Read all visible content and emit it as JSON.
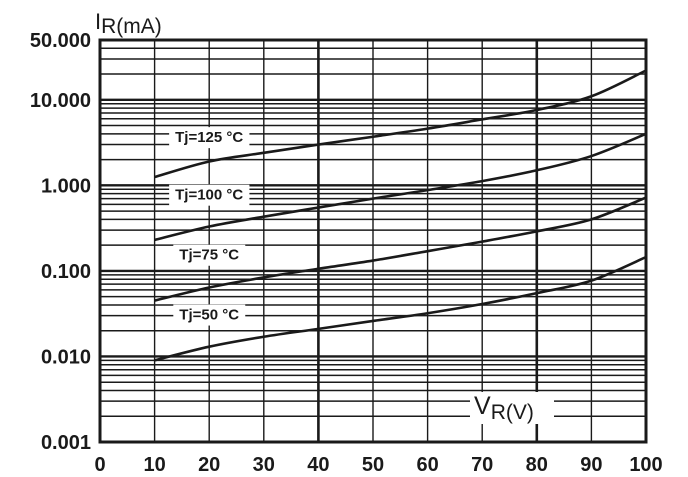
{
  "chart_data": {
    "type": "line",
    "title": "",
    "xlabel": "V",
    "xlabel_sub": "R(V)",
    "ylabel": "I",
    "ylabel_sub": "R(mA)",
    "xlim": [
      0,
      100
    ],
    "ylim": [
      0.001,
      50
    ],
    "yscale": "log",
    "grid": true,
    "x_ticks": [
      0,
      10,
      20,
      30,
      40,
      50,
      60,
      70,
      80,
      90,
      100
    ],
    "x_tick_labels": [
      "0",
      "10",
      "20",
      "30",
      "40",
      "50",
      "60",
      "70",
      "80",
      "90",
      "100"
    ],
    "y_ticks": [
      0.001,
      0.01,
      0.1,
      1,
      10,
      50
    ],
    "y_tick_labels": [
      "0.001",
      "0.010",
      "0.100",
      "1.000",
      "10.000",
      "50.000"
    ],
    "series": [
      {
        "name": "Tj=125 °C",
        "x": [
          10,
          20,
          30,
          40,
          50,
          60,
          70,
          80,
          90,
          100
        ],
        "y": [
          1.25,
          1.9,
          2.4,
          3.0,
          3.7,
          4.6,
          5.9,
          7.6,
          11.0,
          22.0
        ],
        "label_at": [
          20,
          3.2
        ]
      },
      {
        "name": "Tj=100 °C",
        "x": [
          10,
          20,
          30,
          40,
          50,
          60,
          70,
          80,
          90,
          100
        ],
        "y": [
          0.23,
          0.33,
          0.43,
          0.55,
          0.7,
          0.88,
          1.12,
          1.5,
          2.2,
          4.0
        ],
        "label_at": [
          20,
          0.68
        ]
      },
      {
        "name": "Tj=75 °C",
        "x": [
          10,
          20,
          30,
          40,
          50,
          60,
          70,
          80,
          90,
          100
        ],
        "y": [
          0.045,
          0.064,
          0.084,
          0.106,
          0.132,
          0.17,
          0.22,
          0.29,
          0.4,
          0.72
        ],
        "label_at": [
          20,
          0.135
        ]
      },
      {
        "name": "Tj=50 °C",
        "x": [
          10,
          20,
          30,
          40,
          50,
          60,
          70,
          80,
          90,
          100
        ],
        "y": [
          0.009,
          0.013,
          0.017,
          0.021,
          0.026,
          0.032,
          0.041,
          0.055,
          0.077,
          0.145
        ],
        "label_at": [
          20,
          0.027
        ]
      }
    ]
  }
}
